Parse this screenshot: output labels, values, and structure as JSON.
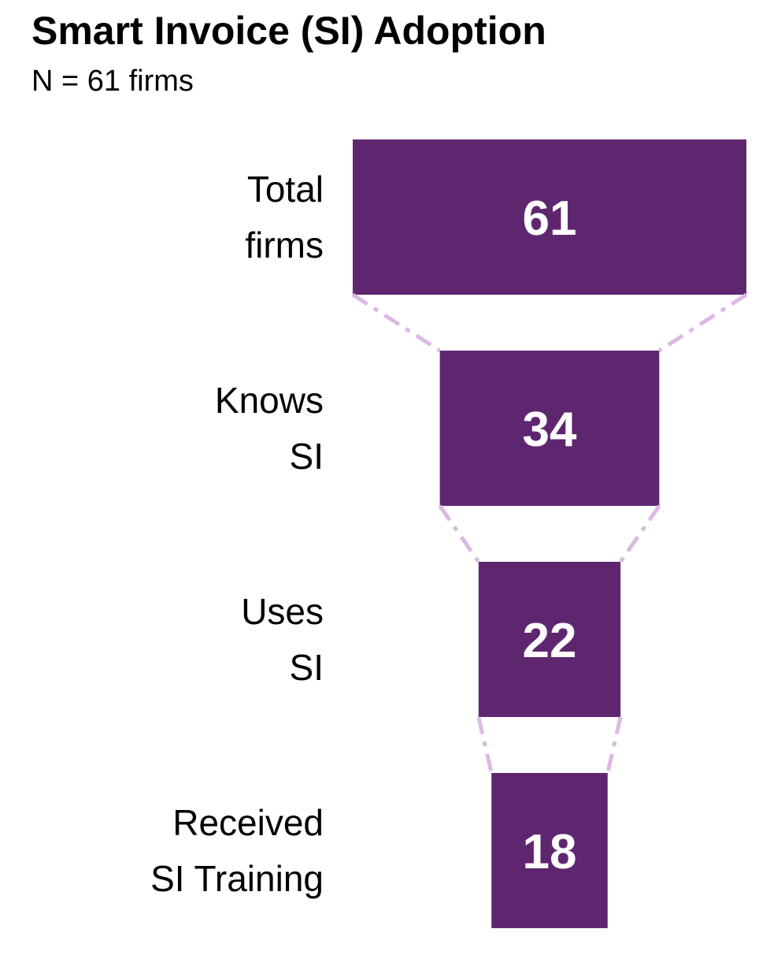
{
  "chart_data": {
    "type": "funnel",
    "title": "Smart Invoice (SI) Adoption",
    "subtitle": "N = 61 firms",
    "categories": [
      "Total\nfirms",
      "Knows\nSI",
      "Uses\nSI",
      "Received\nSI Training"
    ],
    "values": [
      61,
      34,
      22,
      18
    ],
    "color": "#5f2670",
    "connector_color": "#dcb9e4"
  }
}
